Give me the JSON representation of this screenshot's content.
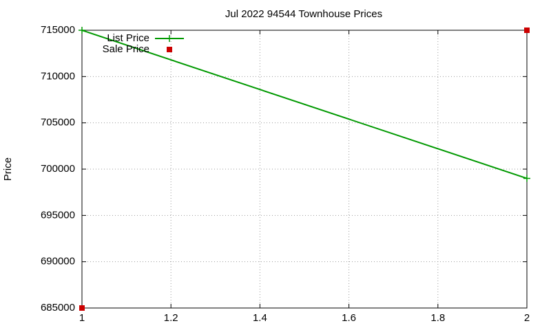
{
  "chart_data": {
    "type": "line",
    "title": "Jul 2022 94544 Townhouse Prices",
    "y_label": "Price",
    "x": [
      1,
      2
    ],
    "series": [
      {
        "name": "List Price",
        "color": "#009900",
        "values": [
          715000,
          699000
        ],
        "lines": true,
        "marker": "plus"
      },
      {
        "name": "Sale Price",
        "color": "#cc0000",
        "values": [
          685000,
          715000
        ],
        "lines": false,
        "marker": "square"
      }
    ],
    "xlim": [
      1,
      2
    ],
    "xticks": [
      1,
      1.2,
      1.4,
      1.6,
      1.8,
      2
    ],
    "ylim": [
      685000,
      715000
    ],
    "yticks": [
      685000,
      690000,
      695000,
      700000,
      705000,
      710000,
      715000
    ],
    "grid": true,
    "legend": "top-left"
  }
}
